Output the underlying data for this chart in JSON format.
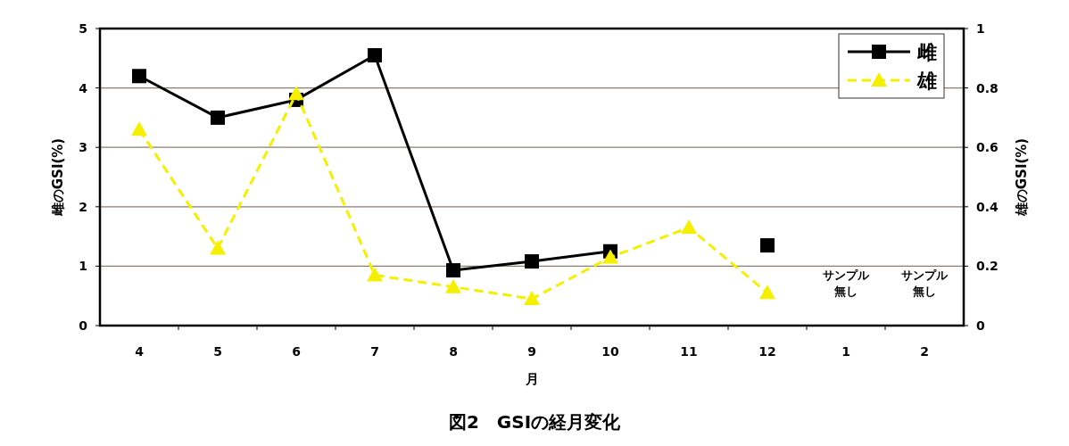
{
  "chart_data": {
    "type": "line",
    "title": "図2　GSIの経月変化",
    "xlabel": "月",
    "ylabel": "雌のGSI(%)",
    "y2label": "雄のGSI(%)",
    "categories": [
      "4",
      "5",
      "6",
      "7",
      "8",
      "9",
      "10",
      "11",
      "12",
      "1",
      "2"
    ],
    "series": [
      {
        "name": "雌",
        "color": "#000000",
        "marker": "square",
        "line_style": "solid",
        "values": [
          4.2,
          3.5,
          3.8,
          4.55,
          0.93,
          1.08,
          1.25,
          null,
          1.35,
          null,
          null
        ]
      },
      {
        "name": "雄",
        "color": "#f5f000",
        "marker": "triangle",
        "line_style": "dashed",
        "axis": "y2",
        "values": [
          0.66,
          0.26,
          0.78,
          0.17,
          0.13,
          0.09,
          0.23,
          0.33,
          0.11,
          null,
          null
        ]
      }
    ],
    "ylim": [
      0,
      5
    ],
    "yticks": [
      0,
      1,
      2,
      3,
      4,
      5
    ],
    "y2lim": [
      0,
      1
    ],
    "y2ticks": [
      0,
      0.2,
      0.4,
      0.6,
      0.8,
      1
    ],
    "grid": "y",
    "legend": "top right",
    "annotations": [
      "サンプル無し",
      "サンプル無し"
    ]
  }
}
